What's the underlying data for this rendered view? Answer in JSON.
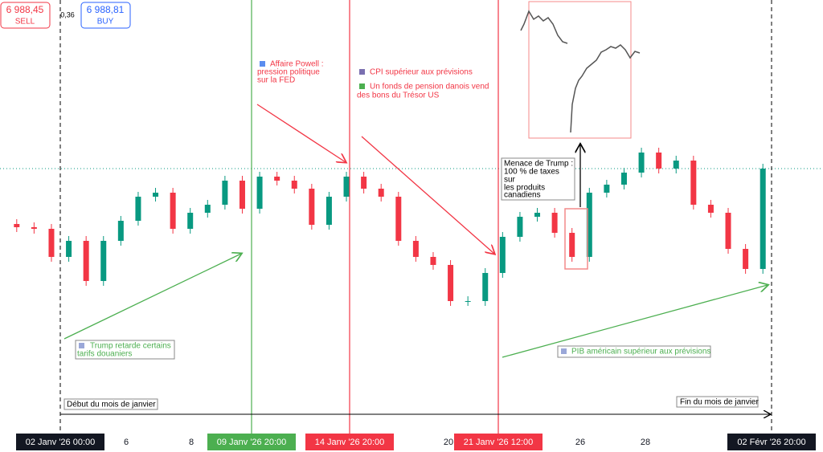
{
  "chart_data": {
    "type": "candlestick",
    "sell": {
      "value": "6 988,45",
      "label": "SELL"
    },
    "buy": {
      "value": "6 988,81",
      "label": "BUY"
    },
    "spread": "0,36",
    "current_price": 6989,
    "open": [
      6920,
      6916,
      6914,
      6879,
      6899,
      6849,
      6899,
      6924,
      6954,
      6959,
      6914,
      6934,
      6944,
      6974,
      6939,
      6979,
      6974,
      6964,
      6919,
      6954,
      6979,
      6964,
      6954,
      6899,
      6879,
      6869,
      6824,
      6824,
      6859,
      6904,
      6929,
      6934,
      6909,
      6879,
      6959,
      6969,
      6984,
      7009,
      6989,
      6999,
      6944,
      6934,
      6889,
      6864
    ],
    "high": [
      6926,
      6922,
      6920,
      6905,
      6905,
      6905,
      6930,
      6960,
      6965,
      6965,
      6940,
      6950,
      6980,
      6980,
      6985,
      6985,
      6980,
      6970,
      6960,
      6985,
      6985,
      6970,
      6960,
      6905,
      6885,
      6875,
      6830,
      6865,
      6910,
      6935,
      6940,
      6940,
      6915,
      6965,
      6975,
      6990,
      7015,
      7015,
      7005,
      7005,
      6950,
      6940,
      6895,
      6995
    ],
    "low": [
      6910,
      6908,
      6873,
      6873,
      6843,
      6843,
      6893,
      6918,
      6948,
      6908,
      6908,
      6928,
      6938,
      6933,
      6933,
      6968,
      6958,
      6913,
      6913,
      6948,
      6958,
      6948,
      6893,
      6873,
      6863,
      6818,
      6818,
      6818,
      6853,
      6898,
      6923,
      6903,
      6873,
      6873,
      6953,
      6963,
      6978,
      6983,
      6983,
      6938,
      6928,
      6883,
      6858,
      6858
    ],
    "close": [
      6916,
      6914,
      6879,
      6899,
      6849,
      6899,
      6924,
      6954,
      6959,
      6914,
      6934,
      6944,
      6974,
      6939,
      6979,
      6974,
      6964,
      6919,
      6954,
      6979,
      6964,
      6954,
      6899,
      6879,
      6869,
      6824,
      6824,
      6859,
      6904,
      6929,
      6934,
      6909,
      6879,
      6959,
      6969,
      6984,
      7009,
      6989,
      6999,
      6944,
      6934,
      6889,
      6864,
      6989
    ],
    "ylim": [
      6636,
      7199
    ],
    "up_color": "#089981",
    "down_color": "#f23645",
    "x_labels": [
      "02 Janv '26   00:00",
      "6",
      "8",
      "09 Janv '26   20:00",
      "14 Janv '26   20:00",
      "20",
      "21 Janv '26   12:00",
      "26",
      "28",
      "02 Févr '26   20:00"
    ],
    "annotations": {
      "powell": [
        "Affaire Powell :",
        "pression politique",
        "sur la FED"
      ],
      "cpi": "CPI supérieur aux prévisions",
      "fonds": [
        "Un fonds de pension danois vend",
        "des bons du Trésor US"
      ],
      "trump_tarifs": [
        "Trump retarde certains",
        "tarifs douaniers"
      ],
      "trump_menace": [
        "Menace de Trump :",
        "100 % de taxes",
        "sur",
        "les produits",
        "canadiens"
      ],
      "pib": "PIB américain supérieur aux prévisions",
      "debut": "Début du mois de janvier",
      "fin": "Fin du mois de janvier"
    }
  }
}
